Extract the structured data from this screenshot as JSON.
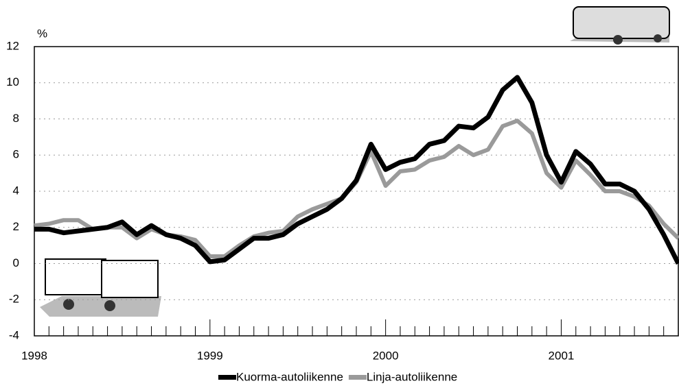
{
  "chart_data": {
    "type": "line",
    "y_label": "%",
    "categories": [
      "1998",
      null,
      null,
      null,
      null,
      null,
      null,
      null,
      null,
      null,
      null,
      null,
      "1999",
      null,
      null,
      null,
      null,
      null,
      null,
      null,
      null,
      null,
      null,
      null,
      "2000",
      null,
      null,
      null,
      null,
      null,
      null,
      null,
      null,
      null,
      null,
      null,
      "2001",
      null,
      null,
      null,
      null,
      null,
      null,
      null,
      null
    ],
    "series": [
      {
        "name": "Kuorma-autoliikenne",
        "color": "#000000",
        "values": [
          1.9,
          1.9,
          1.7,
          1.8,
          1.9,
          2.0,
          2.3,
          1.6,
          2.1,
          1.6,
          1.4,
          1.0,
          0.1,
          0.2,
          0.8,
          1.4,
          1.4,
          1.6,
          2.2,
          2.6,
          3.0,
          3.6,
          4.6,
          6.6,
          5.2,
          5.6,
          5.8,
          6.6,
          6.8,
          7.6,
          7.5,
          8.1,
          9.6,
          10.3,
          8.9,
          6.0,
          4.5,
          6.2,
          5.5,
          4.4,
          4.4,
          4.0,
          3.0,
          1.6,
          0.0
        ]
      },
      {
        "name": "Linja-autoliikenne",
        "color": "#9a9a9a",
        "values": [
          2.1,
          2.2,
          2.4,
          2.4,
          1.9,
          2.0,
          2.0,
          1.4,
          1.9,
          1.6,
          1.5,
          1.3,
          0.4,
          0.4,
          1.0,
          1.5,
          1.7,
          1.8,
          2.6,
          3.0,
          3.3,
          3.6,
          4.5,
          6.2,
          4.3,
          5.1,
          5.2,
          5.7,
          5.9,
          6.5,
          6.0,
          6.3,
          7.6,
          7.9,
          7.2,
          5.0,
          4.2,
          5.7,
          4.9,
          4.0,
          4.0,
          3.7,
          3.2,
          2.2,
          1.4
        ]
      }
    ],
    "ylim": [
      -4,
      12
    ],
    "yticks": [
      -4,
      -2,
      0,
      2,
      4,
      6,
      8,
      10,
      12
    ],
    "grid": true
  }
}
